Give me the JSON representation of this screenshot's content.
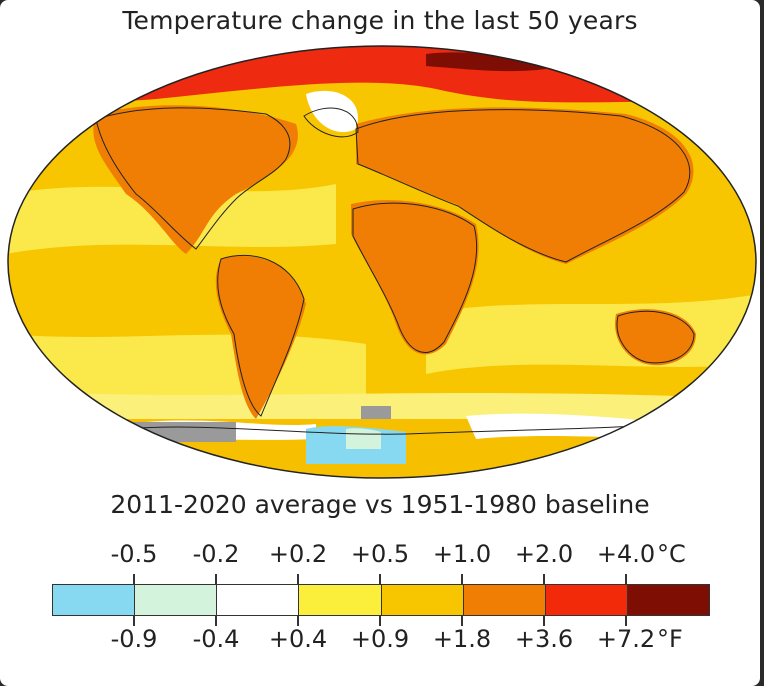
{
  "title": "Temperature change in the last 50 years",
  "subtitle": "2011-2020 average vs 1951-1980 baseline",
  "legend": {
    "celsius_labels": [
      "-0.5",
      "-0.2",
      "+0.2",
      "+0.5",
      "+1.0",
      "+2.0",
      "+4.0"
    ],
    "celsius_unit": "°C",
    "fahrenheit_labels": [
      "-0.9",
      "-0.4",
      "+0.4",
      "+0.9",
      "+1.8",
      "+3.6",
      "+7.2"
    ],
    "fahrenheit_unit": "°F",
    "bins": [
      {
        "color": "#87d9f2"
      },
      {
        "color": "#d4f3dd"
      },
      {
        "color": "#ffffff"
      },
      {
        "color": "#fbef3b"
      },
      {
        "color": "#f7c600"
      },
      {
        "color": "#f07e05"
      },
      {
        "color": "#f32a0a"
      },
      {
        "color": "#7e0d03"
      }
    ]
  },
  "colors": {
    "ocean_base": "#f7cc10",
    "land_base": "#f08a10",
    "arctic": "#ee2a10",
    "no_data": "#9a9a9a",
    "coastline": "#222222"
  }
}
